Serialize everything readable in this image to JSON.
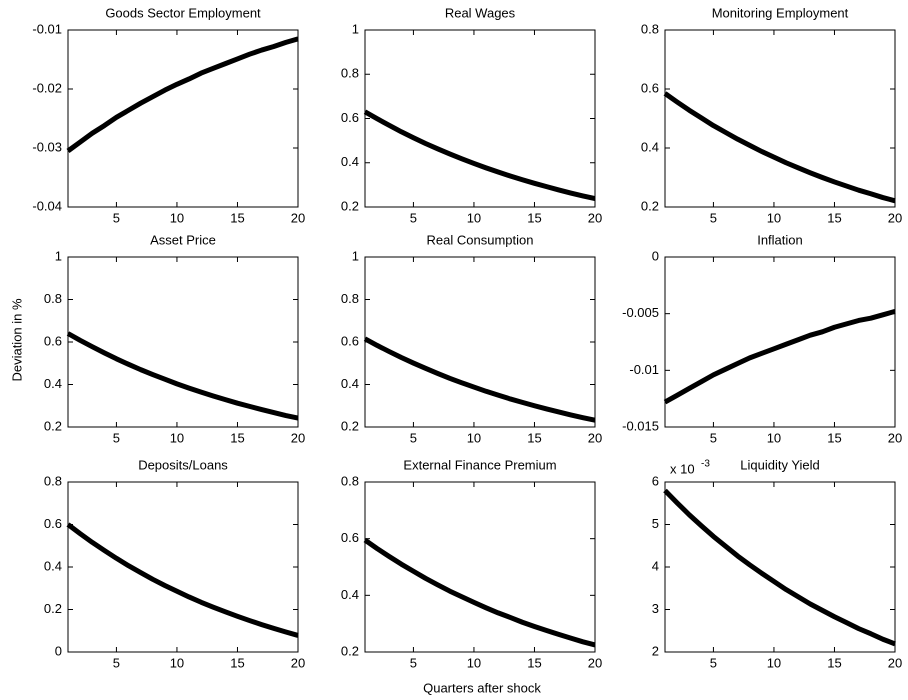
{
  "ylabel": "Deviation in %",
  "xlabel": "Quarters after shock",
  "chart_data": [
    {
      "type": "line",
      "title": "Goods Sector Employment",
      "x": [
        1,
        2,
        3,
        4,
        5,
        6,
        7,
        8,
        9,
        10,
        11,
        12,
        13,
        14,
        15,
        16,
        17,
        18,
        19,
        20
      ],
      "values": [
        -0.0305,
        -0.029,
        -0.0275,
        -0.0262,
        -0.0248,
        -0.0236,
        -0.0224,
        -0.0213,
        -0.0202,
        -0.0192,
        -0.0183,
        -0.0173,
        -0.0165,
        -0.0157,
        -0.0149,
        -0.0141,
        -0.0134,
        -0.0128,
        -0.0121,
        -0.0115
      ],
      "color": "#000000",
      "xlim": [
        1,
        20
      ],
      "xticks": [
        5,
        10,
        15,
        20
      ],
      "ylim": [
        -0.04,
        -0.01
      ],
      "yticks": [
        -0.04,
        -0.03,
        -0.02,
        -0.01
      ]
    },
    {
      "type": "line",
      "title": "Real Wages",
      "x": [
        1,
        2,
        3,
        4,
        5,
        6,
        7,
        8,
        9,
        10,
        11,
        12,
        13,
        14,
        15,
        16,
        17,
        18,
        19,
        20
      ],
      "values": [
        0.63,
        0.599,
        0.569,
        0.54,
        0.513,
        0.487,
        0.463,
        0.44,
        0.418,
        0.397,
        0.377,
        0.358,
        0.34,
        0.323,
        0.307,
        0.292,
        0.277,
        0.263,
        0.25,
        0.238
      ],
      "color": "#000000",
      "xlim": [
        1,
        20
      ],
      "xticks": [
        5,
        10,
        15,
        20
      ],
      "ylim": [
        0.2,
        1
      ],
      "yticks": [
        0.2,
        0.4,
        0.6,
        0.8,
        1
      ]
    },
    {
      "type": "line",
      "title": "Monitoring Employment",
      "x": [
        1,
        2,
        3,
        4,
        5,
        6,
        7,
        8,
        9,
        10,
        11,
        12,
        13,
        14,
        15,
        16,
        17,
        18,
        19,
        20
      ],
      "values": [
        0.585,
        0.556,
        0.528,
        0.502,
        0.476,
        0.453,
        0.43,
        0.409,
        0.388,
        0.369,
        0.35,
        0.333,
        0.316,
        0.3,
        0.285,
        0.271,
        0.257,
        0.245,
        0.232,
        0.221
      ],
      "color": "#000000",
      "xlim": [
        1,
        20
      ],
      "xticks": [
        5,
        10,
        15,
        20
      ],
      "ylim": [
        0.2,
        0.8
      ],
      "yticks": [
        0.2,
        0.4,
        0.6,
        0.8
      ]
    },
    {
      "type": "line",
      "title": "Asset Price",
      "x": [
        1,
        2,
        3,
        4,
        5,
        6,
        7,
        8,
        9,
        10,
        11,
        12,
        13,
        14,
        15,
        16,
        17,
        18,
        19,
        20
      ],
      "values": [
        0.64,
        0.608,
        0.578,
        0.549,
        0.521,
        0.495,
        0.47,
        0.447,
        0.425,
        0.403,
        0.383,
        0.364,
        0.346,
        0.329,
        0.312,
        0.297,
        0.282,
        0.268,
        0.254,
        0.242
      ],
      "color": "#000000",
      "xlim": [
        1,
        20
      ],
      "xticks": [
        5,
        10,
        15,
        20
      ],
      "ylim": [
        0.2,
        1
      ],
      "yticks": [
        0.2,
        0.4,
        0.6,
        0.8,
        1
      ]
    },
    {
      "type": "line",
      "title": "Real Consumption",
      "x": [
        1,
        2,
        3,
        4,
        5,
        6,
        7,
        8,
        9,
        10,
        11,
        12,
        13,
        14,
        15,
        16,
        17,
        18,
        19,
        20
      ],
      "values": [
        0.615,
        0.584,
        0.555,
        0.527,
        0.501,
        0.476,
        0.452,
        0.429,
        0.408,
        0.388,
        0.368,
        0.35,
        0.332,
        0.316,
        0.3,
        0.285,
        0.271,
        0.257,
        0.244,
        0.232
      ],
      "color": "#000000",
      "xlim": [
        1,
        20
      ],
      "xticks": [
        5,
        10,
        15,
        20
      ],
      "ylim": [
        0.2,
        1
      ],
      "yticks": [
        0.2,
        0.4,
        0.6,
        0.8,
        1
      ]
    },
    {
      "type": "line",
      "title": "Inflation",
      "x": [
        1,
        2,
        3,
        4,
        5,
        6,
        7,
        8,
        9,
        10,
        11,
        12,
        13,
        14,
        15,
        16,
        17,
        18,
        19,
        20
      ],
      "values": [
        -0.0128,
        -0.0122,
        -0.0116,
        -0.011,
        -0.0104,
        -0.0099,
        -0.0094,
        -0.0089,
        -0.0085,
        -0.0081,
        -0.0077,
        -0.0073,
        -0.0069,
        -0.0066,
        -0.0062,
        -0.0059,
        -0.0056,
        -0.0054,
        -0.0051,
        -0.0048
      ],
      "color": "#000000",
      "xlim": [
        1,
        20
      ],
      "xticks": [
        5,
        10,
        15,
        20
      ],
      "ylim": [
        -0.015,
        0
      ],
      "yticks": [
        -0.015,
        -0.01,
        -0.005,
        0
      ]
    },
    {
      "type": "line",
      "title": "Deposits/Loans",
      "x": [
        1,
        2,
        3,
        4,
        5,
        6,
        7,
        8,
        9,
        10,
        11,
        12,
        13,
        14,
        15,
        16,
        17,
        18,
        19,
        20
      ],
      "values": [
        0.6,
        0.557,
        0.516,
        0.478,
        0.441,
        0.406,
        0.374,
        0.342,
        0.313,
        0.286,
        0.259,
        0.234,
        0.211,
        0.189,
        0.168,
        0.148,
        0.129,
        0.111,
        0.094,
        0.078
      ],
      "color": "#000000",
      "xlim": [
        1,
        20
      ],
      "xticks": [
        5,
        10,
        15,
        20
      ],
      "ylim": [
        0,
        0.8
      ],
      "yticks": [
        0,
        0.2,
        0.4,
        0.6,
        0.8
      ]
    },
    {
      "type": "line",
      "title": "External Finance Premium",
      "x": [
        1,
        2,
        3,
        4,
        5,
        6,
        7,
        8,
        9,
        10,
        11,
        12,
        13,
        14,
        15,
        16,
        17,
        18,
        19,
        20
      ],
      "values": [
        0.595,
        0.565,
        0.537,
        0.51,
        0.485,
        0.46,
        0.437,
        0.415,
        0.395,
        0.375,
        0.356,
        0.338,
        0.322,
        0.305,
        0.29,
        0.276,
        0.262,
        0.249,
        0.236,
        0.225
      ],
      "color": "#000000",
      "xlim": [
        1,
        20
      ],
      "xticks": [
        5,
        10,
        15,
        20
      ],
      "ylim": [
        0.2,
        0.8
      ],
      "yticks": [
        0.2,
        0.4,
        0.6,
        0.8
      ]
    },
    {
      "type": "line",
      "title": "Liquidity Yield",
      "scale_label": "x 10",
      "scale_exponent": "-3",
      "x": [
        1,
        2,
        3,
        4,
        5,
        6,
        7,
        8,
        9,
        10,
        11,
        12,
        13,
        14,
        15,
        16,
        17,
        18,
        19,
        20
      ],
      "values": [
        5.8,
        5.51,
        5.23,
        4.97,
        4.72,
        4.49,
        4.26,
        4.05,
        3.85,
        3.66,
        3.47,
        3.3,
        3.13,
        2.98,
        2.83,
        2.69,
        2.55,
        2.43,
        2.3,
        2.19
      ],
      "color": "#000000",
      "xlim": [
        1,
        20
      ],
      "xticks": [
        5,
        10,
        15,
        20
      ],
      "ylim": [
        2,
        6
      ],
      "yticks": [
        2,
        3,
        4,
        5,
        6
      ]
    }
  ]
}
